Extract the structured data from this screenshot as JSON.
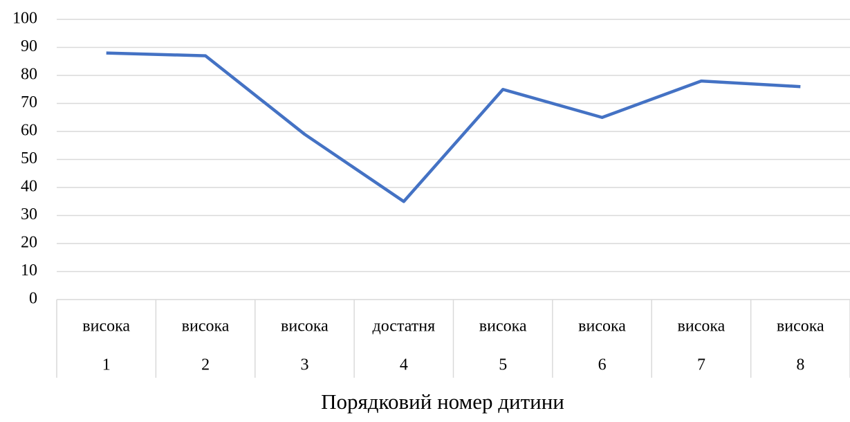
{
  "chart_data": {
    "type": "line",
    "x_label": "Порядковий номер дитини",
    "categories": [
      "1",
      "2",
      "3",
      "4",
      "5",
      "6",
      "7",
      "8"
    ],
    "category_groups": [
      "висока",
      "висока",
      "висока",
      "достатня",
      "висока",
      "висока",
      "висока",
      "висока"
    ],
    "values": [
      88,
      87,
      59,
      35,
      75,
      65,
      78,
      76
    ],
    "color": "#4472c4",
    "ylim": [
      0,
      100
    ],
    "yticks": [
      0,
      10,
      20,
      30,
      40,
      50,
      60,
      70,
      80,
      90,
      100
    ],
    "grid": true
  }
}
